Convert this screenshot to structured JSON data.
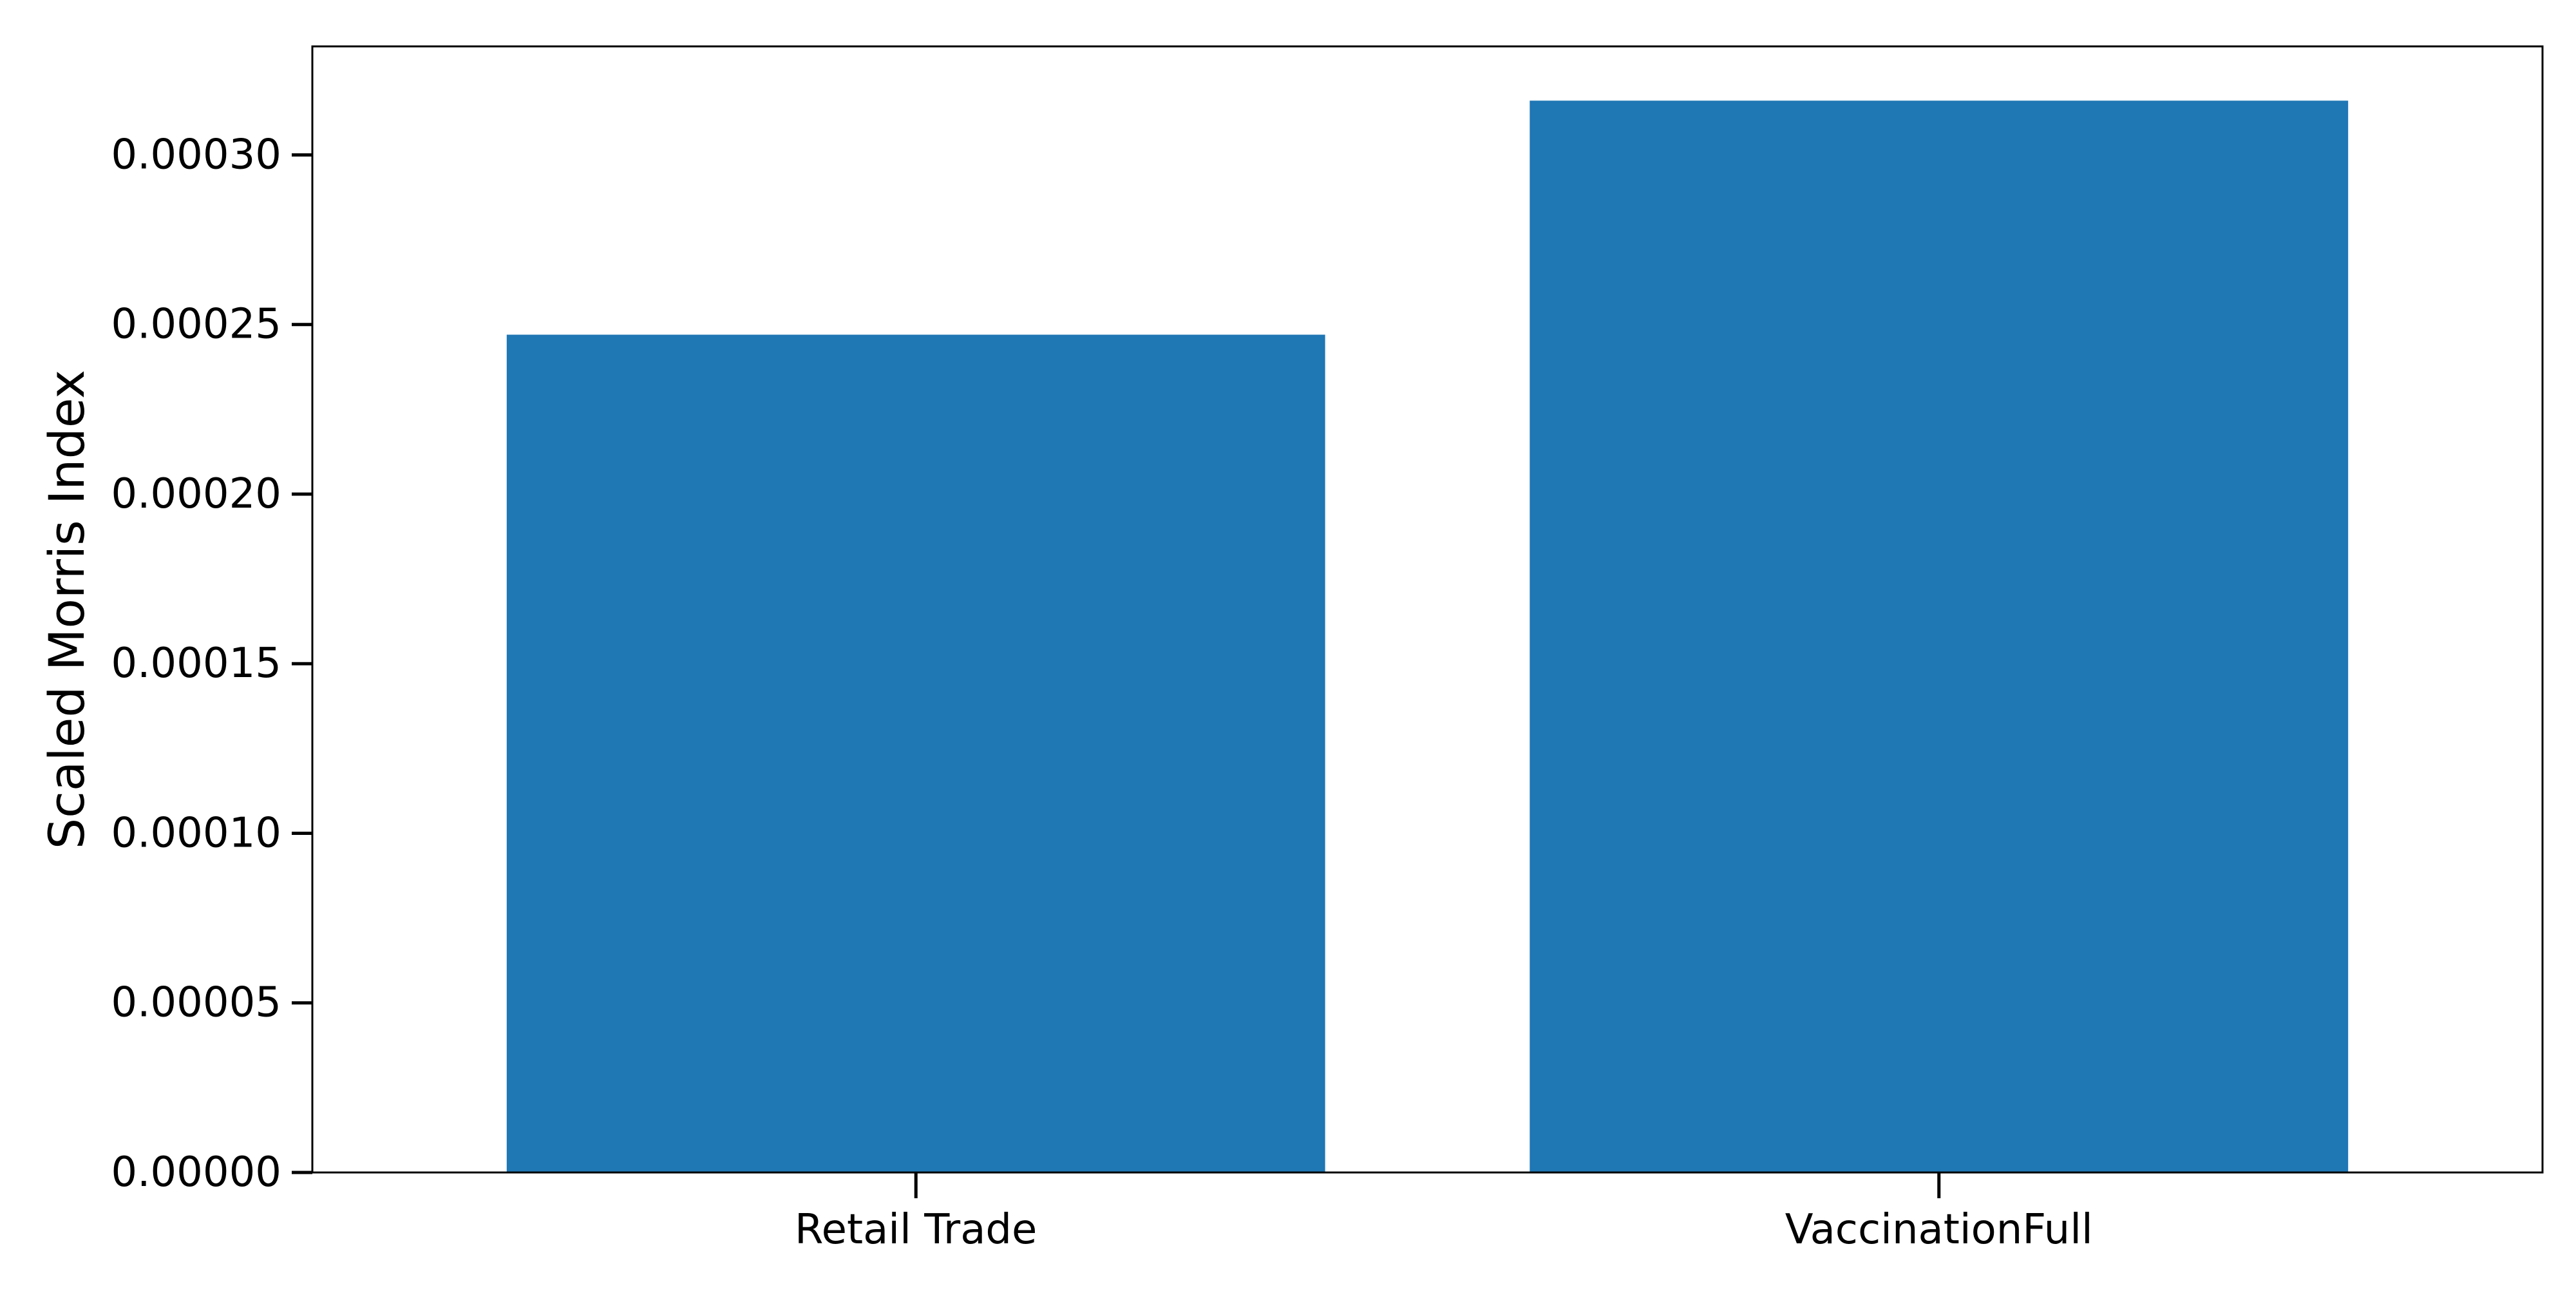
{
  "chart_data": {
    "type": "bar",
    "title": "",
    "xlabel": "",
    "ylabel": "Scaled Morris Index",
    "categories": [
      "Retail Trade",
      "VaccinationFull"
    ],
    "values": [
      0.000247,
      0.000316
    ],
    "ylim": [
      0,
      0.000332
    ],
    "yticks": [
      "0.00000",
      "0.00005",
      "0.00010",
      "0.00015",
      "0.00020",
      "0.00025",
      "0.00030"
    ],
    "ytick_values": [
      0,
      5e-05,
      0.0001,
      0.00015,
      0.0002,
      0.00025,
      0.0003
    ],
    "bar_color": "#1f77b4",
    "grid": false,
    "legend": "none"
  }
}
